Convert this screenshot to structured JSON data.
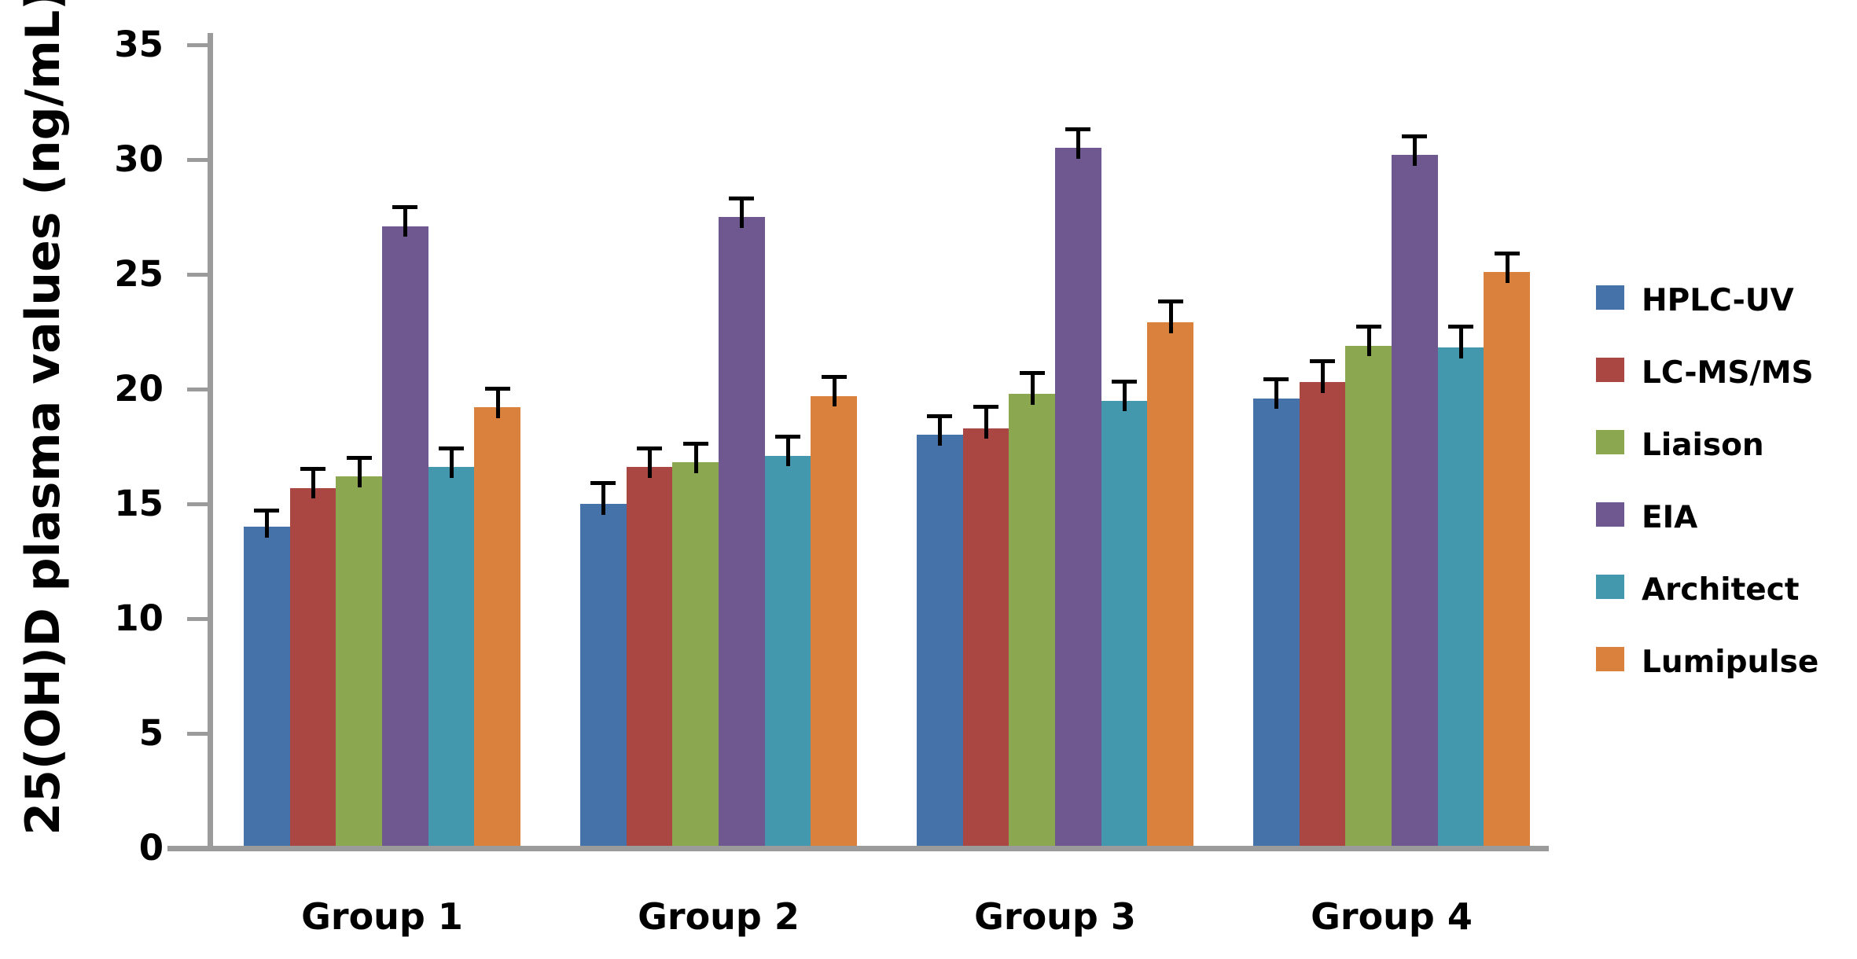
{
  "chart_data": {
    "type": "bar",
    "title": "",
    "xlabel": "",
    "ylabel": "25(OH)D plasma values (ng/mL)",
    "categories": [
      "Group 1",
      "Group 2",
      "Group 3",
      "Group 4"
    ],
    "series": [
      {
        "name": "HPLC-UV",
        "color": "#4573A9",
        "values": [
          14.0,
          15.0,
          18.0,
          19.6
        ],
        "errors": [
          0.8,
          1.0,
          0.9,
          0.9
        ]
      },
      {
        "name": "LC-MS/MS",
        "color": "#AA4743",
        "values": [
          15.7,
          16.6,
          18.3,
          20.3
        ],
        "errors": [
          0.9,
          0.9,
          1.0,
          1.0
        ]
      },
      {
        "name": "Liaison",
        "color": "#8BA750",
        "values": [
          16.2,
          16.8,
          19.8,
          21.9
        ],
        "errors": [
          0.9,
          0.9,
          1.0,
          0.9
        ]
      },
      {
        "name": "EIA",
        "color": "#6F5890",
        "values": [
          27.1,
          27.5,
          30.5,
          30.2
        ],
        "errors": [
          0.9,
          0.9,
          0.9,
          0.9
        ]
      },
      {
        "name": "Architect",
        "color": "#4398AD",
        "values": [
          16.6,
          17.1,
          19.5,
          21.8
        ],
        "errors": [
          0.9,
          0.9,
          0.9,
          1.0
        ]
      },
      {
        "name": "Lumipulse",
        "color": "#DA823D",
        "values": [
          19.2,
          19.7,
          22.9,
          25.1
        ],
        "errors": [
          0.9,
          0.9,
          1.0,
          0.9
        ]
      }
    ],
    "y_axis": {
      "min": 0,
      "max": 35,
      "step": 5,
      "ticks": [
        0,
        5,
        10,
        15,
        20,
        25,
        30,
        35
      ]
    },
    "grid": false,
    "legend_position": "right",
    "error_bars": "upper",
    "axis_color": "#9B9B9B",
    "text_color": "#000000",
    "background_color": "#FFFFFF"
  }
}
